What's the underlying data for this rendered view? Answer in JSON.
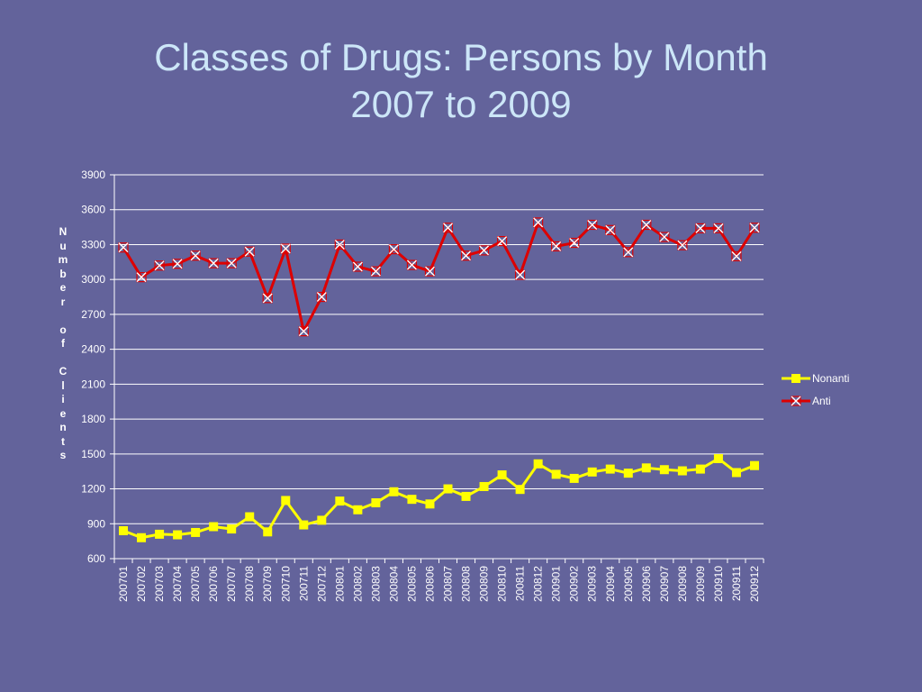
{
  "slide": {
    "title_line1": "Classes of Drugs: Persons by Month",
    "title_line2": "2007 to 2009"
  },
  "chart_data": {
    "type": "line",
    "title": "Classes of Drugs: Persons by Month 2007 to 2009",
    "xlabel": "",
    "ylabel": "Number of Clients",
    "ylim": [
      600,
      3900
    ],
    "yticks": [
      600,
      900,
      1200,
      1500,
      1800,
      2100,
      2400,
      2700,
      3000,
      3300,
      3600,
      3900
    ],
    "grid": true,
    "legend_position": "right",
    "categories": [
      "200701",
      "200702",
      "200703",
      "200704",
      "200705",
      "200706",
      "200707",
      "200708",
      "200709",
      "200710",
      "200711",
      "200712",
      "200801",
      "200802",
      "200803",
      "200804",
      "200805",
      "200806",
      "200807",
      "200808",
      "200809",
      "200810",
      "200811",
      "200812",
      "200901",
      "200902",
      "200903",
      "200904",
      "200905",
      "200906",
      "200907",
      "200908",
      "200909",
      "200910",
      "200911",
      "200912"
    ],
    "series": [
      {
        "name": "Nonanti",
        "color": "#ffff00",
        "marker": "square",
        "values": [
          840,
          780,
          810,
          805,
          825,
          875,
          855,
          960,
          830,
          1100,
          890,
          930,
          1095,
          1020,
          1080,
          1175,
          1110,
          1070,
          1200,
          1135,
          1220,
          1320,
          1195,
          1415,
          1325,
          1290,
          1345,
          1370,
          1335,
          1380,
          1365,
          1355,
          1370,
          1460,
          1340,
          1400
        ]
      },
      {
        "name": "Anti",
        "color": "#dd0000",
        "marker": "x",
        "values": [
          3275,
          3020,
          3120,
          3135,
          3205,
          3140,
          3140,
          3240,
          2840,
          3265,
          2555,
          2850,
          3300,
          3110,
          3070,
          3260,
          3125,
          3070,
          3445,
          3205,
          3250,
          3330,
          3040,
          3490,
          3285,
          3315,
          3470,
          3425,
          3235,
          3470,
          3365,
          3295,
          3440,
          3440,
          3200,
          3445
        ]
      }
    ]
  }
}
